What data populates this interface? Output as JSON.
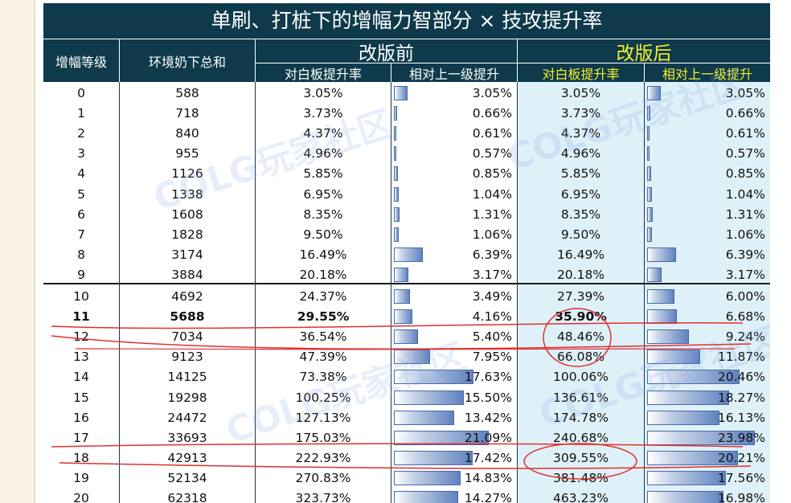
{
  "title": "单刷、打桩下的增幅力智部分 × 技攻提升率",
  "headers": {
    "level": "增幅等级",
    "env_total": "环境奶下总和",
    "before": "改版前",
    "after": "改版后",
    "vs_white": "对白板提升率",
    "vs_prev": "相对上一级提升"
  },
  "watermark": "COLG玩家社区",
  "rows": [
    {
      "level": "0",
      "env": "588",
      "bw": "3.05%",
      "bp": "3.05%",
      "bpv": 3.05,
      "aw": "3.05%",
      "ap": "3.05%",
      "apv": 3.05
    },
    {
      "level": "1",
      "env": "718",
      "bw": "3.73%",
      "bp": "0.66%",
      "bpv": 0.66,
      "aw": "3.73%",
      "ap": "0.66%",
      "apv": 0.66
    },
    {
      "level": "2",
      "env": "840",
      "bw": "4.37%",
      "bp": "0.61%",
      "bpv": 0.61,
      "aw": "4.37%",
      "ap": "0.61%",
      "apv": 0.61
    },
    {
      "level": "3",
      "env": "955",
      "bw": "4.96%",
      "bp": "0.57%",
      "bpv": 0.57,
      "aw": "4.96%",
      "ap": "0.57%",
      "apv": 0.57
    },
    {
      "level": "4",
      "env": "1126",
      "bw": "5.85%",
      "bp": "0.85%",
      "bpv": 0.85,
      "aw": "5.85%",
      "ap": "0.85%",
      "apv": 0.85
    },
    {
      "level": "5",
      "env": "1338",
      "bw": "6.95%",
      "bp": "1.04%",
      "bpv": 1.04,
      "aw": "6.95%",
      "ap": "1.04%",
      "apv": 1.04
    },
    {
      "level": "6",
      "env": "1608",
      "bw": "8.35%",
      "bp": "1.31%",
      "bpv": 1.31,
      "aw": "8.35%",
      "ap": "1.31%",
      "apv": 1.31
    },
    {
      "level": "7",
      "env": "1828",
      "bw": "9.50%",
      "bp": "1.06%",
      "bpv": 1.06,
      "aw": "9.50%",
      "ap": "1.06%",
      "apv": 1.06
    },
    {
      "level": "8",
      "env": "3174",
      "bw": "16.49%",
      "bp": "6.39%",
      "bpv": 6.39,
      "aw": "16.49%",
      "ap": "6.39%",
      "apv": 6.39
    },
    {
      "level": "9",
      "env": "3884",
      "bw": "20.18%",
      "bp": "3.17%",
      "bpv": 3.17,
      "aw": "20.18%",
      "ap": "3.17%",
      "apv": 3.17
    },
    {
      "level": "10",
      "env": "4692",
      "bw": "24.37%",
      "bp": "3.49%",
      "bpv": 3.49,
      "aw": "27.39%",
      "ap": "6.00%",
      "apv": 6.0
    },
    {
      "level": "11",
      "env": "5688",
      "bw": "29.55%",
      "bp": "4.16%",
      "bpv": 4.16,
      "aw": "35.90%",
      "ap": "6.68%",
      "apv": 6.68,
      "bold": true
    },
    {
      "level": "12",
      "env": "7034",
      "bw": "36.54%",
      "bp": "5.40%",
      "bpv": 5.4,
      "aw": "48.46%",
      "ap": "9.24%",
      "apv": 9.24
    },
    {
      "level": "13",
      "env": "9123",
      "bw": "47.39%",
      "bp": "7.95%",
      "bpv": 7.95,
      "aw": "66.08%",
      "ap": "11.87%",
      "apv": 11.87
    },
    {
      "level": "14",
      "env": "14125",
      "bw": "73.38%",
      "bp": "17.63%",
      "bpv": 17.63,
      "aw": "100.06%",
      "ap": "20.46%",
      "apv": 20.46
    },
    {
      "level": "15",
      "env": "19298",
      "bw": "100.25%",
      "bp": "15.50%",
      "bpv": 15.5,
      "aw": "136.61%",
      "ap": "18.27%",
      "apv": 18.27
    },
    {
      "level": "16",
      "env": "24472",
      "bw": "127.13%",
      "bp": "13.42%",
      "bpv": 13.42,
      "aw": "174.78%",
      "ap": "16.13%",
      "apv": 16.13
    },
    {
      "level": "17",
      "env": "33693",
      "bw": "175.03%",
      "bp": "21.09%",
      "bpv": 21.09,
      "aw": "240.68%",
      "ap": "23.98%",
      "apv": 23.98
    },
    {
      "level": "18",
      "env": "42913",
      "bw": "222.93%",
      "bp": "17.42%",
      "bpv": 17.42,
      "aw": "309.55%",
      "ap": "20.21%",
      "apv": 20.21
    },
    {
      "level": "19",
      "env": "52134",
      "bw": "270.83%",
      "bp": "14.83%",
      "bpv": 14.83,
      "aw": "381.48%",
      "ap": "17.56%",
      "apv": 17.56
    },
    {
      "level": "20",
      "env": "62318",
      "bw": "323.73%",
      "bp": "14.27%",
      "bpv": 14.27,
      "aw": "463.23%",
      "ap": "16.98%",
      "apv": 16.98
    }
  ]
}
